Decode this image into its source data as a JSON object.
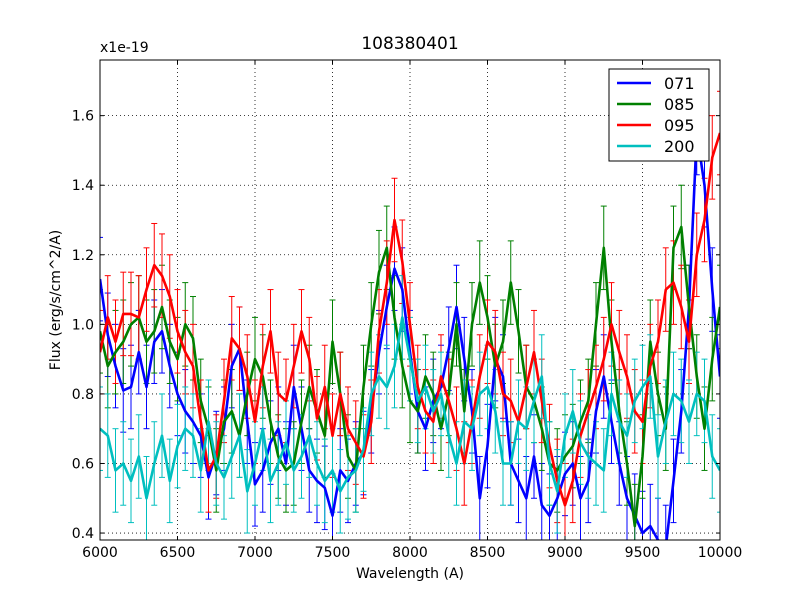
{
  "chart_data": {
    "type": "line",
    "title": "108380401",
    "xlabel": "Wavelength (A)",
    "ylabel": "Flux (erg/s/cm^2/A)",
    "offset_text": "x1e-19",
    "xlim": [
      6000,
      10000
    ],
    "ylim": [
      0.38,
      1.76
    ],
    "xticks": [
      6000,
      6500,
      7000,
      7500,
      8000,
      8500,
      9000,
      9500,
      10000
    ],
    "yticks": [
      0.4,
      0.6,
      0.8,
      1.0,
      1.2,
      1.4,
      1.6
    ],
    "xtick_labels": [
      "6000",
      "6500",
      "7000",
      "7500",
      "8000",
      "8500",
      "9000",
      "9500",
      "10000"
    ],
    "ytick_labels": [
      "0.4",
      "0.6",
      "0.8",
      "1.0",
      "1.2",
      "1.4",
      "1.6"
    ],
    "grid": true,
    "legend_position": "top-right",
    "series": [
      {
        "name": "071",
        "color": "#0000ff",
        "x": [
          6000,
          6050,
          6100,
          6150,
          6200,
          6250,
          6300,
          6350,
          6400,
          6450,
          6500,
          6550,
          6600,
          6650,
          6700,
          6750,
          6800,
          6850,
          6900,
          6950,
          7000,
          7050,
          7100,
          7150,
          7200,
          7250,
          7300,
          7350,
          7400,
          7450,
          7500,
          7550,
          7600,
          7650,
          7700,
          7750,
          7800,
          7850,
          7900,
          7950,
          8000,
          8050,
          8100,
          8150,
          8200,
          8250,
          8300,
          8350,
          8400,
          8450,
          8500,
          8550,
          8600,
          8650,
          8700,
          8750,
          8800,
          8850,
          8900,
          8950,
          9000,
          9050,
          9100,
          9150,
          9200,
          9250,
          9300,
          9350,
          9400,
          9450,
          9500,
          9550,
          9600,
          9650,
          9700,
          9750,
          9800,
          9850,
          9900,
          9950,
          10000
        ],
        "y": [
          1.13,
          0.97,
          0.88,
          0.81,
          0.82,
          0.92,
          0.82,
          0.95,
          0.98,
          0.88,
          0.8,
          0.75,
          0.72,
          0.68,
          0.56,
          0.63,
          0.7,
          0.88,
          0.93,
          0.72,
          0.54,
          0.58,
          0.66,
          0.7,
          0.6,
          0.82,
          0.7,
          0.58,
          0.55,
          0.53,
          0.45,
          0.58,
          0.55,
          0.6,
          0.63,
          0.75,
          0.92,
          1.05,
          1.16,
          1.1,
          0.92,
          0.75,
          0.7,
          0.78,
          0.82,
          0.93,
          1.05,
          0.9,
          0.75,
          0.5,
          0.65,
          0.9,
          0.85,
          0.6,
          0.55,
          0.5,
          0.62,
          0.48,
          0.45,
          0.5,
          0.57,
          0.6,
          0.5,
          0.55,
          0.75,
          0.85,
          0.72,
          0.6,
          0.5,
          0.45,
          0.4,
          0.42,
          0.38,
          0.36,
          0.55,
          0.75,
          1.05,
          1.55,
          1.4,
          1.1,
          0.85
        ]
      },
      {
        "name": "085",
        "color": "#008000",
        "x": [
          6000,
          6050,
          6100,
          6150,
          6200,
          6250,
          6300,
          6350,
          6400,
          6450,
          6500,
          6550,
          6600,
          6650,
          6700,
          6750,
          6800,
          6850,
          6900,
          6950,
          7000,
          7050,
          7100,
          7150,
          7200,
          7250,
          7300,
          7350,
          7400,
          7450,
          7500,
          7550,
          7600,
          7650,
          7700,
          7750,
          7800,
          7850,
          7900,
          7950,
          8000,
          8050,
          8100,
          8150,
          8200,
          8250,
          8300,
          8350,
          8400,
          8450,
          8500,
          8550,
          8600,
          8650,
          8700,
          8750,
          8800,
          8850,
          8900,
          8950,
          9000,
          9050,
          9100,
          9150,
          9200,
          9250,
          9300,
          9350,
          9400,
          9450,
          9500,
          9550,
          9600,
          9650,
          9700,
          9750,
          9800,
          9850,
          9900,
          9950,
          10000
        ],
        "y": [
          0.98,
          0.88,
          0.92,
          0.95,
          1.0,
          1.02,
          0.95,
          0.98,
          1.05,
          0.95,
          0.9,
          1.0,
          0.96,
          0.78,
          0.7,
          0.58,
          0.72,
          0.75,
          0.68,
          0.8,
          0.9,
          0.85,
          0.72,
          0.62,
          0.58,
          0.6,
          0.72,
          0.82,
          0.75,
          0.68,
          0.95,
          0.8,
          0.62,
          0.58,
          0.82,
          1.0,
          1.15,
          1.22,
          1.02,
          0.88,
          0.78,
          0.75,
          0.85,
          0.8,
          0.7,
          0.8,
          1.0,
          0.75,
          1.0,
          1.12,
          1.02,
          0.88,
          0.95,
          1.12,
          0.98,
          0.82,
          0.78,
          0.7,
          0.6,
          0.58,
          0.62,
          0.65,
          0.72,
          0.78,
          1.0,
          1.22,
          0.95,
          0.75,
          0.6,
          0.42,
          0.62,
          0.95,
          0.8,
          0.7,
          1.22,
          1.28,
          1.05,
          0.85,
          0.7,
          0.9,
          1.05
        ]
      },
      {
        "name": "095",
        "color": "#ff0000",
        "x": [
          6000,
          6050,
          6100,
          6150,
          6200,
          6250,
          6300,
          6350,
          6400,
          6450,
          6500,
          6550,
          6600,
          6650,
          6700,
          6750,
          6800,
          6850,
          6900,
          6950,
          7000,
          7050,
          7100,
          7150,
          7200,
          7250,
          7300,
          7350,
          7400,
          7450,
          7500,
          7550,
          7600,
          7650,
          7700,
          7750,
          7800,
          7850,
          7900,
          7950,
          8000,
          8050,
          8100,
          8150,
          8200,
          8250,
          8300,
          8350,
          8400,
          8450,
          8500,
          8550,
          8600,
          8650,
          8700,
          8750,
          8800,
          8850,
          8900,
          8950,
          9000,
          9050,
          9100,
          9150,
          9200,
          9250,
          9300,
          9350,
          9400,
          9450,
          9500,
          9550,
          9600,
          9650,
          9700,
          9750,
          9800,
          9850,
          9900,
          9950,
          10000
        ],
        "y": [
          0.92,
          1.02,
          0.95,
          1.03,
          1.03,
          1.02,
          1.1,
          1.17,
          1.14,
          1.08,
          0.98,
          0.92,
          0.88,
          0.72,
          0.58,
          0.62,
          0.78,
          0.96,
          0.93,
          0.85,
          0.72,
          0.88,
          0.98,
          0.8,
          0.78,
          0.88,
          0.98,
          0.9,
          0.73,
          0.82,
          0.68,
          0.8,
          0.7,
          0.66,
          0.62,
          0.72,
          0.98,
          1.12,
          1.3,
          1.18,
          1.0,
          0.82,
          0.75,
          0.72,
          0.85,
          0.78,
          0.7,
          0.6,
          0.72,
          0.85,
          0.95,
          0.92,
          0.8,
          0.78,
          0.72,
          0.82,
          0.92,
          0.78,
          0.65,
          0.55,
          0.48,
          0.55,
          0.68,
          0.75,
          0.82,
          0.9,
          1.0,
          0.92,
          0.85,
          0.75,
          0.72,
          0.88,
          0.95,
          1.1,
          1.12,
          1.05,
          0.95,
          1.2,
          1.3,
          1.48,
          1.55
        ]
      },
      {
        "name": "200",
        "color": "#00bfbf",
        "x": [
          6000,
          6050,
          6100,
          6150,
          6200,
          6250,
          6300,
          6350,
          6400,
          6450,
          6500,
          6550,
          6600,
          6650,
          6700,
          6750,
          6800,
          6850,
          6900,
          6950,
          7000,
          7050,
          7100,
          7150,
          7200,
          7250,
          7300,
          7350,
          7400,
          7450,
          7500,
          7550,
          7600,
          7650,
          7700,
          7750,
          7800,
          7850,
          7900,
          7950,
          8000,
          8050,
          8100,
          8150,
          8200,
          8250,
          8300,
          8350,
          8400,
          8450,
          8500,
          8550,
          8600,
          8650,
          8700,
          8750,
          8800,
          8850,
          8900,
          8950,
          9000,
          9050,
          9100,
          9150,
          9200,
          9250,
          9300,
          9350,
          9400,
          9450,
          9500,
          9550,
          9600,
          9650,
          9700,
          9750,
          9800,
          9850,
          9900,
          9950,
          10000
        ],
        "y": [
          0.7,
          0.68,
          0.58,
          0.6,
          0.55,
          0.62,
          0.5,
          0.6,
          0.68,
          0.55,
          0.65,
          0.7,
          0.68,
          0.58,
          0.72,
          0.6,
          0.56,
          0.62,
          0.68,
          0.52,
          0.6,
          0.7,
          0.55,
          0.6,
          0.66,
          0.58,
          0.62,
          0.68,
          0.6,
          0.55,
          0.58,
          0.52,
          0.56,
          0.58,
          0.64,
          0.8,
          0.85,
          0.82,
          0.88,
          1.02,
          0.9,
          0.78,
          0.82,
          0.75,
          0.8,
          0.68,
          0.6,
          0.72,
          0.7,
          0.8,
          0.82,
          0.75,
          0.6,
          0.6,
          0.72,
          0.7,
          0.78,
          0.85,
          0.6,
          0.52,
          0.68,
          0.75,
          0.66,
          0.62,
          0.6,
          0.58,
          0.8,
          0.72,
          0.68,
          0.78,
          0.82,
          0.85,
          0.62,
          0.72,
          0.8,
          0.78,
          0.72,
          0.8,
          0.78,
          0.62,
          0.58
        ]
      }
    ],
    "error_bars": {
      "description": "Each series is drawn with vertical error bars of roughly ±0.12 flux units",
      "half_width": 0.12
    }
  }
}
